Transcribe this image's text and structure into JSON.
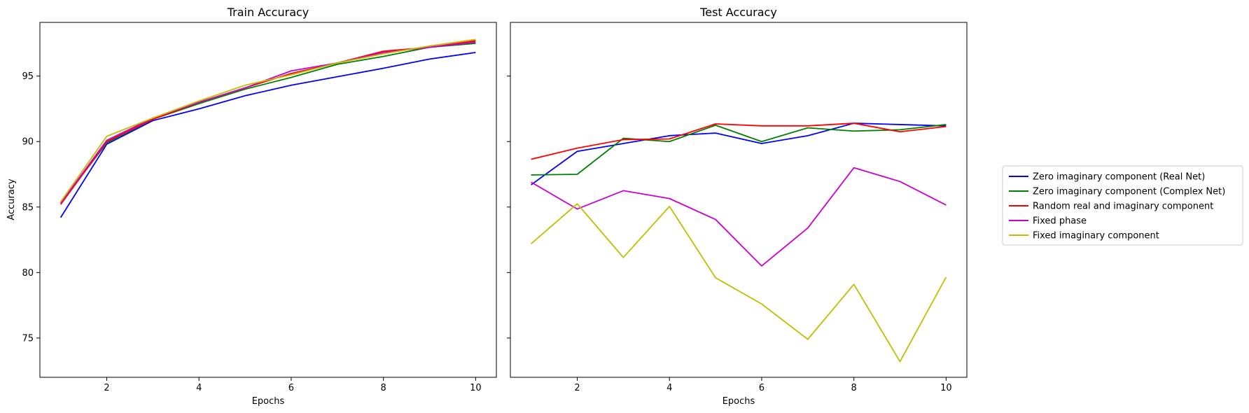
{
  "chart_data": [
    {
      "type": "line",
      "title": "Train Accuracy",
      "xlabel": "Epochs",
      "ylabel": "Accuracy",
      "xlim": [
        0.55,
        10.45
      ],
      "ylim": [
        72.0,
        99.1
      ],
      "xticks": [
        2,
        4,
        6,
        8,
        10
      ],
      "yticks": [
        75,
        80,
        85,
        90,
        95
      ],
      "grid": false,
      "x": [
        1,
        2,
        3,
        4,
        5,
        6,
        7,
        8,
        9,
        10
      ],
      "series": [
        {
          "name": "Zero imaginary component (Real Net)",
          "color": "#0000ff",
          "values": [
            84.2,
            89.8,
            91.6,
            92.5,
            93.5,
            94.3,
            94.95,
            95.6,
            96.3,
            96.8
          ]
        },
        {
          "name": "Zero imaginary component (Complex Net)",
          "color": "#008000",
          "values": [
            85.3,
            89.9,
            91.7,
            92.9,
            94.0,
            94.9,
            95.9,
            96.5,
            97.2,
            97.5
          ]
        },
        {
          "name": "Random real and imaginary component",
          "color": "#ff0000",
          "values": [
            85.2,
            90.0,
            91.7,
            93.0,
            94.1,
            95.2,
            96.0,
            96.9,
            97.2,
            97.7
          ]
        },
        {
          "name": "Fixed phase",
          "color": "#cc00cc",
          "values": [
            85.3,
            90.1,
            91.8,
            93.0,
            94.1,
            95.4,
            96.0,
            96.8,
            97.2,
            97.6
          ]
        },
        {
          "name": "Fixed imaginary component",
          "color": "#bfbf00",
          "values": [
            85.4,
            90.4,
            91.8,
            93.1,
            94.3,
            95.1,
            96.0,
            96.7,
            97.3,
            97.8
          ]
        }
      ]
    },
    {
      "type": "line",
      "title": "Test Accuracy",
      "xlabel": "Epochs",
      "ylabel": "",
      "xlim": [
        0.55,
        10.45
      ],
      "ylim": [
        72.0,
        99.1
      ],
      "xticks": [
        2,
        4,
        6,
        8,
        10
      ],
      "yticks": [
        75,
        80,
        85,
        90,
        95
      ],
      "sharey": true,
      "grid": false,
      "legend_position": "right, outside",
      "x": [
        1,
        2,
        3,
        4,
        5,
        6,
        7,
        8,
        9,
        10
      ],
      "series": [
        {
          "name": "Zero imaginary component (Real Net)",
          "color": "#0000ff",
          "values": [
            86.7,
            89.25,
            89.85,
            90.45,
            90.65,
            89.85,
            90.45,
            91.4,
            91.3,
            91.2
          ]
        },
        {
          "name": "Zero imaginary component (Complex Net)",
          "color": "#008000",
          "values": [
            87.45,
            87.5,
            90.25,
            90.0,
            91.25,
            90.0,
            91.05,
            90.8,
            90.9,
            91.3
          ]
        },
        {
          "name": "Random real and imaginary component",
          "color": "#ff0000",
          "values": [
            88.65,
            89.5,
            90.15,
            90.2,
            91.35,
            91.2,
            91.2,
            91.4,
            90.75,
            91.15
          ]
        },
        {
          "name": "Fixed phase",
          "color": "#cc00cc",
          "values": [
            86.9,
            84.85,
            86.25,
            85.65,
            84.05,
            80.5,
            83.4,
            88.0,
            86.95,
            85.15
          ]
        },
        {
          "name": "Fixed imaginary component",
          "color": "#bfbf00",
          "values": [
            82.2,
            85.25,
            81.15,
            85.05,
            79.6,
            77.6,
            74.9,
            79.1,
            73.2,
            79.65
          ]
        }
      ]
    }
  ]
}
